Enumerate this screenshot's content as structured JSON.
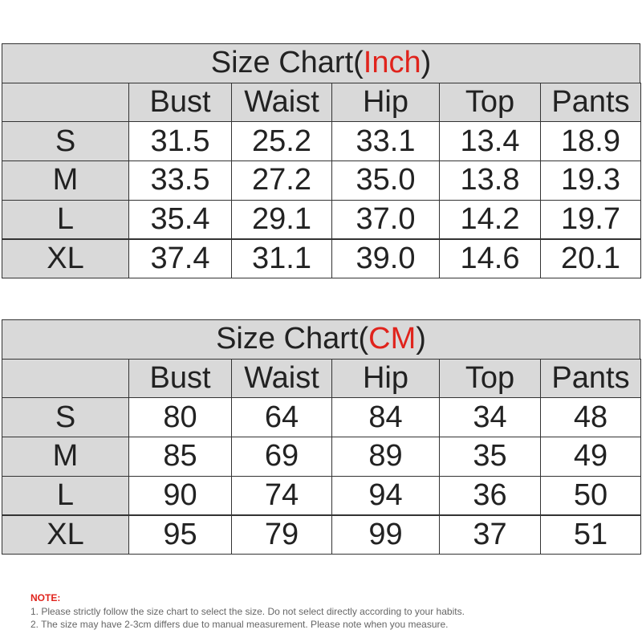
{
  "tables": [
    {
      "title": {
        "prefix": "Size Chart(",
        "unit": "Inch",
        "suffix": ")"
      },
      "headers": [
        "Bust",
        "Waist",
        "Hip",
        "Top",
        "Pants"
      ],
      "rows": [
        [
          "S",
          "31.5",
          "25.2",
          "33.1",
          "13.4",
          "18.9"
        ],
        [
          "M",
          "33.5",
          "27.2",
          "35.0",
          "13.8",
          "19.3"
        ],
        [
          "L",
          "35.4",
          "29.1",
          "37.0",
          "14.2",
          "19.7"
        ],
        [
          "XL",
          "37.4",
          "31.1",
          "39.0",
          "14.6",
          "20.1"
        ]
      ]
    },
    {
      "title": {
        "prefix": "Size Chart(",
        "unit": "CM",
        "suffix": ")"
      },
      "headers": [
        "Bust",
        "Waist",
        "Hip",
        "Top",
        "Pants"
      ],
      "rows": [
        [
          "S",
          "80",
          "64",
          "84",
          "34",
          "48"
        ],
        [
          "M",
          "85",
          "69",
          "89",
          "35",
          "49"
        ],
        [
          "L",
          "90",
          "74",
          "94",
          "36",
          "50"
        ],
        [
          "XL",
          "95",
          "79",
          "99",
          "37",
          "51"
        ]
      ]
    }
  ],
  "note": {
    "heading": "NOTE:",
    "lines": [
      "1. Please strictly follow the size chart  to select the size. Do not select directly according to your habits.",
      "2. The size may have 2-3cm differs due to manual measurement. Please note when you measure."
    ]
  }
}
